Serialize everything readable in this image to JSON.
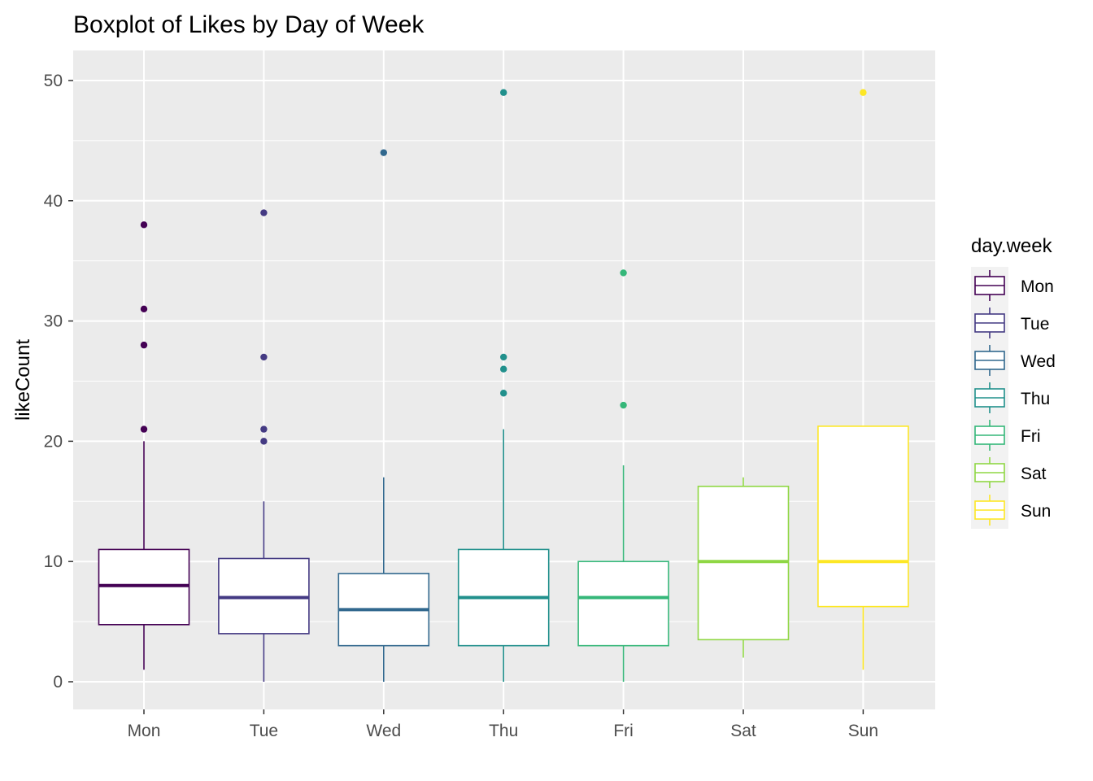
{
  "chart_data": {
    "type": "boxplot",
    "title": "Boxplot of Likes by Day of Week",
    "xlabel": "",
    "ylabel": "likeCount",
    "ylim": [
      -2.3,
      52.5
    ],
    "yticks": [
      0,
      10,
      20,
      30,
      40,
      50
    ],
    "grid": true,
    "legend": {
      "title": "day.week",
      "position": "right"
    },
    "categories": [
      "Mon",
      "Tue",
      "Wed",
      "Thu",
      "Fri",
      "Sat",
      "Sun"
    ],
    "series": [
      {
        "name": "Mon",
        "color": "#440154",
        "whisker_low": 1,
        "q1": 4.75,
        "median": 8,
        "q3": 11,
        "whisker_high": 20,
        "outliers": [
          21,
          28,
          31,
          38
        ]
      },
      {
        "name": "Tue",
        "color": "#443A83",
        "whisker_low": 0,
        "q1": 4,
        "median": 7,
        "q3": 10.25,
        "whisker_high": 15,
        "outliers": [
          20,
          21,
          27,
          39
        ]
      },
      {
        "name": "Wed",
        "color": "#31688E",
        "whisker_low": 0,
        "q1": 3,
        "median": 6,
        "q3": 9,
        "whisker_high": 17,
        "outliers": [
          44
        ]
      },
      {
        "name": "Thu",
        "color": "#21908C",
        "whisker_low": 0,
        "q1": 3,
        "median": 7,
        "q3": 11,
        "whisker_high": 21,
        "outliers": [
          24,
          26,
          27,
          49
        ]
      },
      {
        "name": "Fri",
        "color": "#35B779",
        "whisker_low": 0,
        "q1": 3,
        "median": 7,
        "q3": 10,
        "whisker_high": 18,
        "outliers": [
          23,
          34
        ]
      },
      {
        "name": "Sat",
        "color": "#8FD744",
        "whisker_low": 2,
        "q1": 3.5,
        "median": 10,
        "q3": 16.25,
        "whisker_high": 17,
        "outliers": []
      },
      {
        "name": "Sun",
        "color": "#FDE725",
        "whisker_low": 1,
        "q1": 6.25,
        "median": 10,
        "q3": 21.25,
        "whisker_high": 21.25,
        "outliers": [
          49
        ]
      }
    ]
  }
}
